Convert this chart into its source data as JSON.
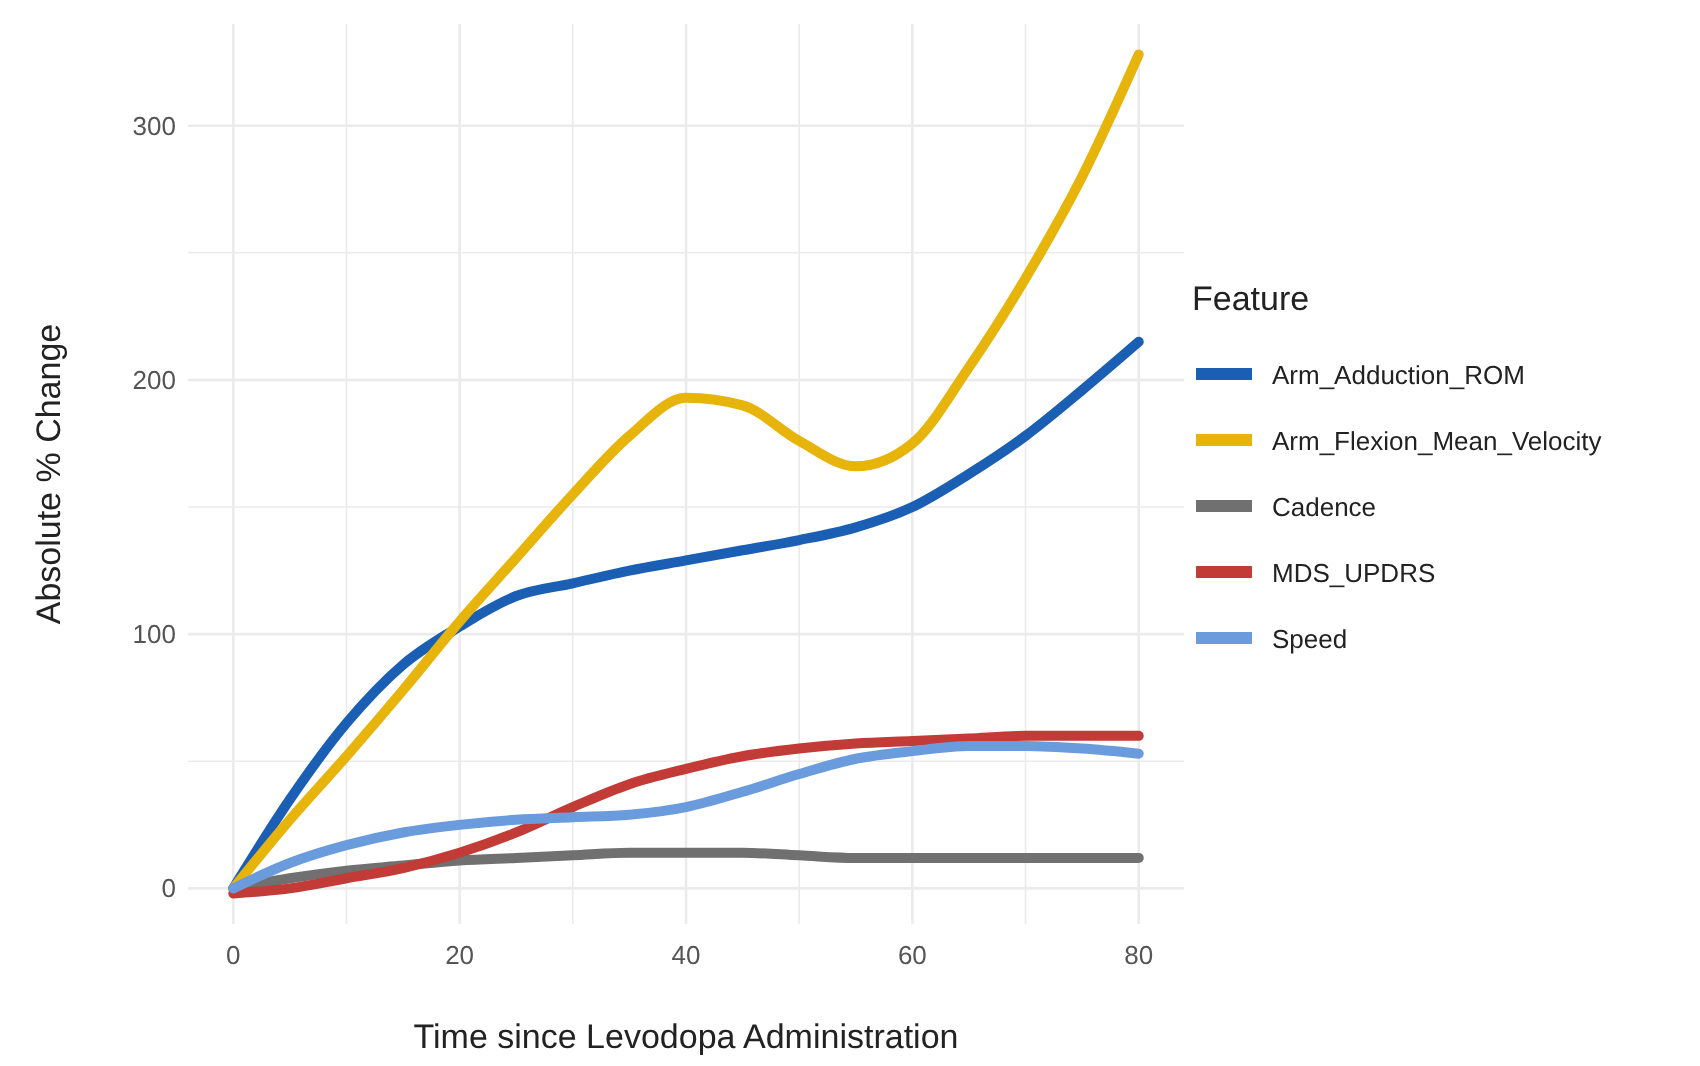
{
  "chart_data": {
    "type": "line",
    "xlabel": "Time since Levodopa Administration",
    "ylabel": "Absolute % Change",
    "legend_title": "Feature",
    "legend": "right",
    "grid": true,
    "marker": "none",
    "line_style": "solid",
    "xlim": [
      -4,
      84
    ],
    "xticks": [
      0,
      20,
      40,
      60,
      80
    ],
    "ylim": [
      -14,
      340
    ],
    "yticks": [
      0,
      100,
      200,
      300
    ],
    "x": [
      0,
      5,
      10,
      15,
      20,
      25,
      30,
      35,
      40,
      45,
      50,
      55,
      60,
      65,
      70,
      75,
      80
    ],
    "series": [
      {
        "name": "Arm_Adduction_ROM",
        "color": "#1a5fb4",
        "values": [
          0,
          35,
          65,
          88,
          103,
          115,
          120,
          125,
          129,
          133,
          137,
          142,
          150,
          163,
          178,
          196,
          215
        ]
      },
      {
        "name": "Arm_Flexion_Mean_Velocity",
        "color": "#e6b40a",
        "values": [
          0,
          27,
          52,
          78,
          105,
          130,
          155,
          178,
          193,
          190,
          176,
          166,
          175,
          205,
          240,
          280,
          328
        ]
      },
      {
        "name": "Cadence",
        "color": "#707070",
        "values": [
          0,
          4,
          7,
          9,
          11,
          12,
          13,
          14,
          14,
          14,
          13,
          12,
          12,
          12,
          12,
          12,
          12
        ]
      },
      {
        "name": "MDS_UPDRS",
        "color": "#c23b36",
        "values": [
          -2,
          0,
          4,
          8,
          14,
          22,
          32,
          41,
          47,
          52,
          55,
          57,
          58,
          59,
          60,
          60,
          60
        ]
      },
      {
        "name": "Speed",
        "color": "#6a9bdc",
        "values": [
          0,
          10,
          17,
          22,
          25,
          27,
          28,
          29,
          32,
          38,
          45,
          51,
          54,
          56,
          56,
          55,
          53
        ]
      }
    ]
  }
}
